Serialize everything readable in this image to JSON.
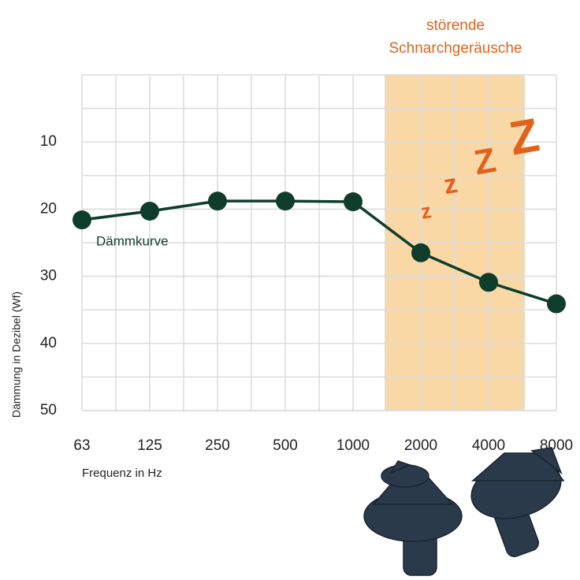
{
  "chart_data": {
    "type": "line",
    "annotation": [
      "störende",
      "Schnarchgeräusche"
    ],
    "snore_letters": [
      "z",
      "z",
      "Z",
      "Z"
    ],
    "y_label": "Dämmung in Dezibel (Wf)",
    "x_label": "Frequenz in Hz",
    "categories": [
      "63",
      "125",
      "250",
      "500",
      "1000",
      "2000",
      "4000",
      "8000"
    ],
    "series": [
      {
        "name": "Dämmkurve",
        "color": "#0e3d2b",
        "values": [
          21.6,
          20.3,
          18.8,
          18.8,
          18.9,
          26.5,
          30.9,
          34.1
        ]
      }
    ],
    "ylim": [
      0,
      50
    ],
    "yticks": [
      10,
      20,
      30,
      40,
      50
    ],
    "y_inverted": true,
    "grid": true,
    "highlight_color": "#f9d8a6",
    "annotation_color": "#e2621b"
  }
}
